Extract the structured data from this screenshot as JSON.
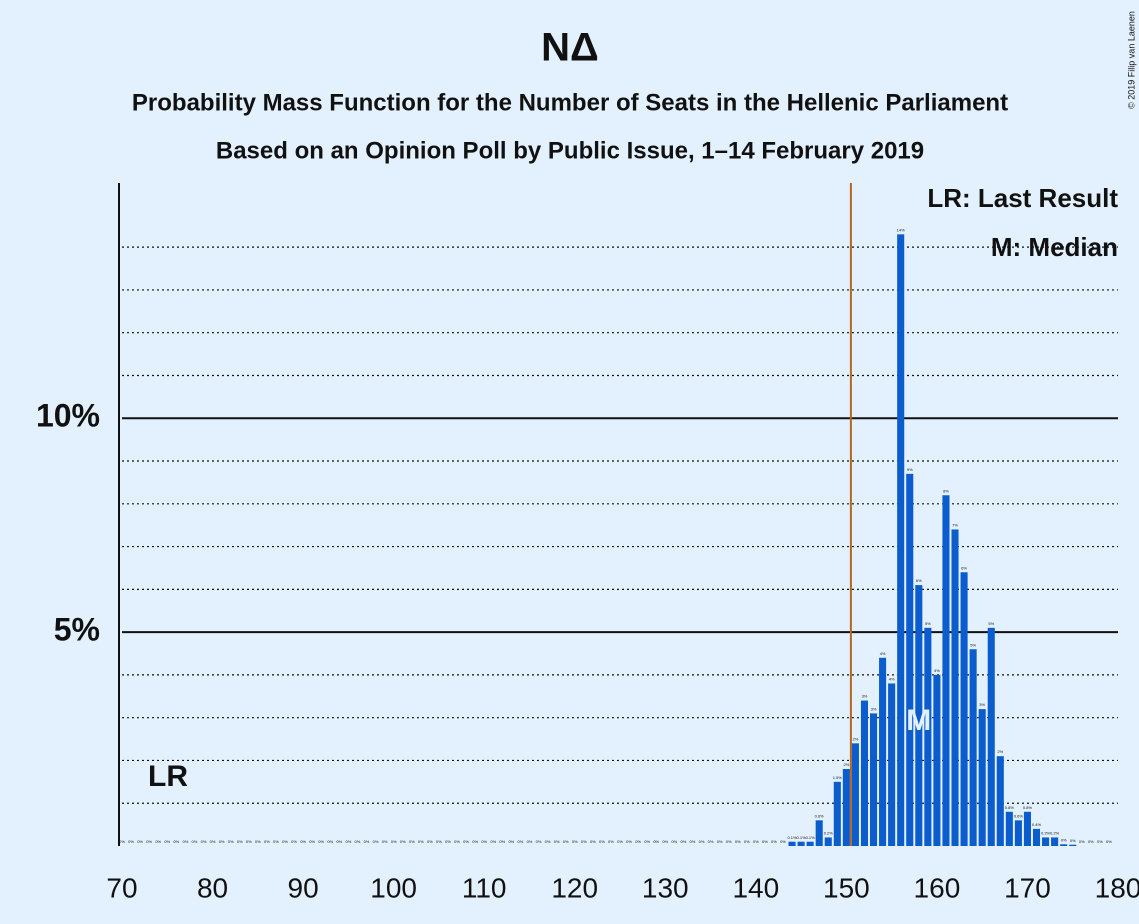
{
  "chart_data": {
    "type": "bar",
    "title": "NΔ",
    "subtitle": "Probability Mass Function for the Number of Seats in the Hellenic Parliament",
    "subtitle2": "Based on an Opinion Poll by Public Issue, 1–14 February 2019",
    "copyright": "© 2019 Filip van Laenen",
    "legend": [
      "LR: Last Result",
      "M: Median"
    ],
    "last_result_label": "LR",
    "median_label": "M",
    "median": 158,
    "majority_line": 150.5,
    "color": "#0b5ccc",
    "majority_color": "#b5651d",
    "x": [
      70,
      71,
      72,
      73,
      74,
      75,
      76,
      77,
      78,
      79,
      80,
      81,
      82,
      83,
      84,
      85,
      86,
      87,
      88,
      89,
      90,
      91,
      92,
      93,
      94,
      95,
      96,
      97,
      98,
      99,
      100,
      101,
      102,
      103,
      104,
      105,
      106,
      107,
      108,
      109,
      110,
      111,
      112,
      113,
      114,
      115,
      116,
      117,
      118,
      119,
      120,
      121,
      122,
      123,
      124,
      125,
      126,
      127,
      128,
      129,
      130,
      131,
      132,
      133,
      134,
      135,
      136,
      137,
      138,
      139,
      140,
      141,
      142,
      143,
      144,
      145,
      146,
      147,
      148,
      149,
      150,
      151,
      152,
      153,
      154,
      155,
      156,
      157,
      158,
      159,
      160,
      161,
      162,
      163,
      164,
      165,
      166,
      167,
      168,
      169,
      170,
      171,
      172,
      173,
      174,
      175,
      176,
      177,
      178,
      179
    ],
    "values": [
      0,
      0,
      0,
      0,
      0,
      0,
      0,
      0,
      0,
      0,
      0,
      0,
      0,
      0,
      0,
      0,
      0,
      0,
      0,
      0,
      0,
      0,
      0,
      0,
      0,
      0,
      0,
      0,
      0,
      0,
      0,
      0,
      0,
      0,
      0,
      0,
      0,
      0,
      0,
      0,
      0,
      0,
      0,
      0,
      0,
      0,
      0,
      0,
      0,
      0,
      0,
      0,
      0,
      0,
      0,
      0,
      0,
      0,
      0,
      0,
      0,
      0,
      0,
      0,
      0,
      0,
      0,
      0,
      0,
      0,
      0,
      0,
      0,
      0,
      0.1,
      0.1,
      0.1,
      0.6,
      0.2,
      1.5,
      1.8,
      2.4,
      3.4,
      3.1,
      4.4,
      3.8,
      14.3,
      8.7,
      6.1,
      5.1,
      4,
      8.2,
      7.4,
      6.4,
      4.6,
      3.2,
      5.1,
      2.1,
      0.8,
      0.6,
      0.8,
      0.4,
      0.2,
      0.2,
      0.04,
      0.03,
      0,
      0,
      0,
      0
    ],
    "value_labels": [
      "0%",
      "0%",
      "0%",
      "0%",
      "0%",
      "0%",
      "0%",
      "0%",
      "0%",
      "0%",
      "0%",
      "0%",
      "0%",
      "0%",
      "0%",
      "0%",
      "0%",
      "0%",
      "0%",
      "0%",
      "0%",
      "0%",
      "0%",
      "0%",
      "0%",
      "0%",
      "0%",
      "0%",
      "0%",
      "0%",
      "0%",
      "0%",
      "0%",
      "0%",
      "0%",
      "0%",
      "0%",
      "0%",
      "0%",
      "0%",
      "0%",
      "0%",
      "0%",
      "0%",
      "0%",
      "0%",
      "0%",
      "0%",
      "0%",
      "0%",
      "0%",
      "0%",
      "0%",
      "0%",
      "0%",
      "0%",
      "0%",
      "0%",
      "0%",
      "0%",
      "0%",
      "0%",
      "0%",
      "0%",
      "0%",
      "0%",
      "0%",
      "0%",
      "0%",
      "0%",
      "0%",
      "0%",
      "0%",
      "0%",
      "0.1%",
      "0.1%",
      "0.1%",
      "0.6%",
      "0.2%",
      "1.5%",
      "2%",
      "2%",
      "3%",
      "3%",
      "4%",
      "4%",
      "14%",
      "9%",
      "6%",
      "5%",
      "4%",
      "8%",
      "7%",
      "6%",
      "5%",
      "3%",
      "5%",
      "2%",
      "0.8%",
      "0.6%",
      "0.8%",
      "0.4%",
      "0.2%",
      "0.2%",
      "0%",
      "0%",
      "0%",
      "0%",
      "0%",
      "0%"
    ],
    "xlim": [
      70,
      180
    ],
    "xticks": [
      70,
      80,
      90,
      100,
      110,
      120,
      130,
      140,
      150,
      160,
      170,
      180
    ],
    "ylim": [
      0,
      15.5
    ],
    "yticks": [
      {
        "value": 5,
        "label": "5%"
      },
      {
        "value": 10,
        "label": "10%"
      }
    ],
    "minor_yticks": [
      1,
      2,
      3,
      4,
      6,
      7,
      8,
      9,
      11,
      12,
      13,
      14
    ],
    "grid": true
  }
}
